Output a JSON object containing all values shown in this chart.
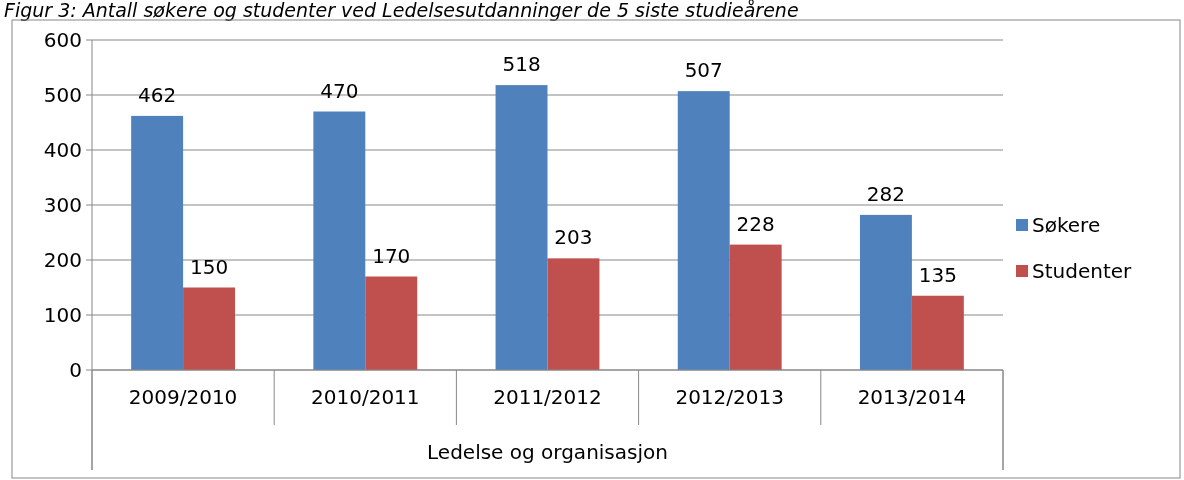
{
  "chart_data": {
    "type": "bar",
    "title": "Figur 3: Antall søkere og studenter ved Ledelsesutdanninger de 5 siste studieårene",
    "xlabel": "Ledelse og organisasjon",
    "categories": [
      "2009/2010",
      "2010/2011",
      "2011/2012",
      "2012/2013",
      "2013/2014"
    ],
    "series": [
      {
        "name": "Søkere",
        "color": "#4f81bd",
        "values": [
          462,
          470,
          518,
          507,
          282
        ]
      },
      {
        "name": "Studenter",
        "color": "#c0504d",
        "values": [
          150,
          170,
          203,
          228,
          135
        ]
      }
    ],
    "ylim": [
      0,
      600
    ],
    "yticks": [
      0,
      100,
      200,
      300,
      400,
      500,
      600
    ],
    "grid": "y",
    "legend": "right",
    "data_labels": true
  }
}
